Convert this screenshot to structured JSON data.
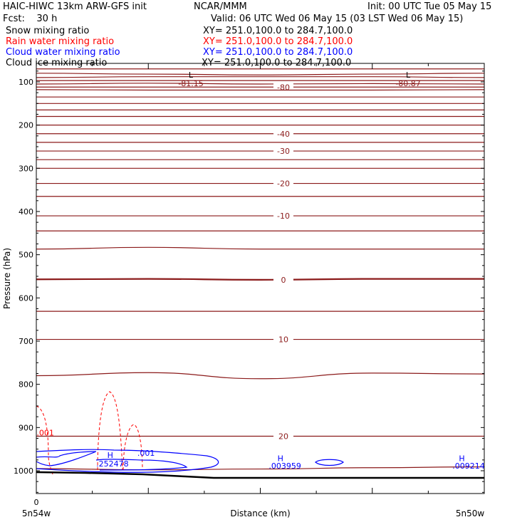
{
  "header": {
    "title_left": "HAIC-HIWC 13km ARW-GFS init",
    "title_center": "NCAR/MMM",
    "init": "Init: 00 UTC Tue 05 May 15",
    "fcst": "Fcst:    30 h",
    "valid": "Valid: 06 UTC Wed 06 May 15 (03 LST Wed 06 May 15)",
    "fields": [
      {
        "name": "Snow mixing ratio",
        "xy": "XY= 251.0,100.0 to 284.7,100.0",
        "color": "#000000"
      },
      {
        "name": "Rain water mixing ratio",
        "xy": "XY= 251.0,100.0 to 284.7,100.0",
        "color": "#ff0000"
      },
      {
        "name": "Cloud water mixing ratio",
        "xy": "XY= 251.0,100.0 to 284.7,100.0",
        "color": "#0000ff"
      },
      {
        "name": "Cloud ice mixing ratio",
        "xy": "XY= 251.0,100.0 to 284.7,100.0",
        "color": "#000000"
      }
    ]
  },
  "chart_data": {
    "type": "cross-section contour",
    "ylabel": "Pressure (hPa)",
    "xlabel": "Distance (km)",
    "y_ticks": [
      100,
      200,
      300,
      400,
      500,
      600,
      700,
      800,
      900,
      1000
    ],
    "ylim": [
      1050,
      50
    ],
    "x_zero_label": "0",
    "x_left_label": "5n54w",
    "x_right_label": "5n50w",
    "colors": {
      "temperature": "#8b1a1a",
      "rain": "#ff0000",
      "cloud": "#0000ff",
      "terrain": "#000000"
    },
    "temperature_contours": [
      {
        "p": [
          70,
          70,
          70,
          70,
          70
        ],
        "label": ""
      },
      {
        "p": [
          80,
          82,
          84,
          82,
          80
        ],
        "label": ""
      },
      {
        "p": [
          90,
          88,
          88,
          88,
          90
        ],
        "label": ""
      },
      {
        "p": [
          97,
          97,
          97,
          97,
          97
        ],
        "label": ""
      },
      {
        "p": [
          105,
          103,
          105,
          104,
          105
        ],
        "label": ""
      },
      {
        "p": [
          112,
          112,
          112,
          112,
          112
        ],
        "label": "-80"
      },
      {
        "p": [
          118,
          119,
          119,
          119,
          118
        ],
        "label": ""
      },
      {
        "p": [
          135,
          135,
          135,
          135,
          135
        ],
        "label": ""
      },
      {
        "p": [
          150,
          150,
          150,
          150,
          150
        ],
        "label": ""
      },
      {
        "p": [
          165,
          165,
          165,
          165,
          165
        ],
        "label": ""
      },
      {
        "p": [
          180,
          180,
          180,
          180,
          180
        ],
        "label": ""
      },
      {
        "p": [
          200,
          200,
          200,
          200,
          200
        ],
        "label": ""
      },
      {
        "p": [
          220,
          220,
          220,
          220,
          220
        ],
        "label": "-40"
      },
      {
        "p": [
          240,
          240,
          240,
          240,
          240
        ],
        "label": ""
      },
      {
        "p": [
          260,
          260,
          260,
          260,
          260
        ],
        "label": "-30"
      },
      {
        "p": [
          280,
          280,
          280,
          280,
          280
        ],
        "label": ""
      },
      {
        "p": [
          300,
          300,
          300,
          300,
          300
        ],
        "label": ""
      },
      {
        "p": [
          335,
          335,
          335,
          335,
          335
        ],
        "label": "-20"
      },
      {
        "p": [
          365,
          365,
          365,
          365,
          365
        ],
        "label": ""
      },
      {
        "p": [
          410,
          410,
          410,
          410,
          410
        ],
        "label": "-10"
      },
      {
        "p": [
          445,
          445,
          445,
          445,
          445
        ],
        "label": ""
      },
      {
        "p": [
          487,
          483,
          487,
          487,
          487
        ],
        "label": ""
      },
      {
        "p": [
          557,
          556,
          558,
          556,
          556
        ],
        "label": "0"
      },
      {
        "p": [
          631,
          631,
          631,
          631,
          631
        ],
        "label": ""
      },
      {
        "p": [
          696,
          696,
          696,
          696,
          696
        ],
        "label": "10"
      },
      {
        "p": [
          780,
          773,
          787,
          774,
          776
        ],
        "label": ""
      },
      {
        "p": [
          920,
          920,
          920,
          920,
          920
        ],
        "label": "20"
      },
      {
        "p": [
          995,
          998,
          996,
          993,
          991
        ],
        "label": ""
      }
    ],
    "annotations": [
      {
        "text": "L",
        "x": 0.345,
        "p": 90,
        "color": "#000000"
      },
      {
        "text": "-81.15",
        "x": 0.345,
        "p": 110,
        "color": "#8b1a1a"
      },
      {
        "text": "L",
        "x": 0.83,
        "p": 90,
        "color": "#000000"
      },
      {
        "text": "-80.87",
        "x": 0.83,
        "p": 110,
        "color": "#8b1a1a"
      },
      {
        "text": ".001",
        "x": 0.02,
        "p": 918,
        "color": "#ff0000"
      },
      {
        "text": "H",
        "x": 0.165,
        "p": 970,
        "color": "#0000ff"
      },
      {
        "text": ".252478",
        "x": 0.17,
        "p": 990,
        "color": "#0000ff"
      },
      {
        "text": ".001",
        "x": 0.245,
        "p": 965,
        "color": "#0000ff"
      },
      {
        "text": "H",
        "x": 0.545,
        "p": 978,
        "color": "#0000ff"
      },
      {
        "text": ".003959",
        "x": 0.555,
        "p": 995,
        "color": "#0000ff"
      },
      {
        "text": "H",
        "x": 0.95,
        "p": 978,
        "color": "#0000ff"
      },
      {
        "text": ".009214",
        "x": 0.965,
        "p": 995,
        "color": "#0000ff"
      }
    ]
  }
}
